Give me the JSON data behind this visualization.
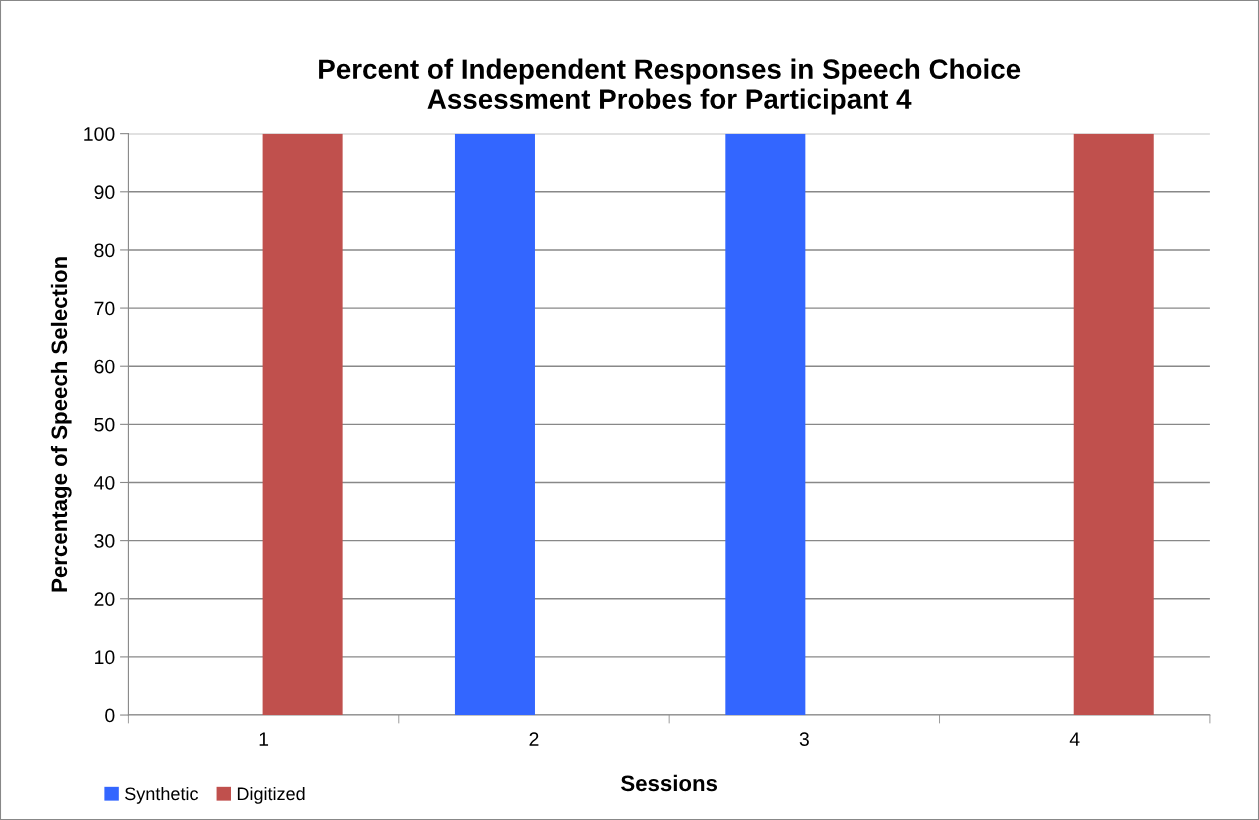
{
  "chart_data": {
    "type": "bar",
    "title": "Percent of Independent Responses in Speech Choice\nAssessment Probes for Participant 4",
    "xlabel": "Sessions",
    "ylabel": "Percentage of Speech Selection",
    "categories": [
      "1",
      "2",
      "3",
      "4"
    ],
    "series": [
      {
        "name": "Synthetic",
        "color": "#3366ff",
        "values": [
          0,
          100,
          100,
          0
        ]
      },
      {
        "name": "Digitized",
        "color": "#c0504d",
        "values": [
          100,
          0,
          0,
          100
        ]
      }
    ],
    "ylim": [
      0,
      100
    ],
    "yticks": [
      0,
      10,
      20,
      30,
      40,
      50,
      60,
      70,
      80,
      90,
      100
    ],
    "grid": "y",
    "legend": "bottom left"
  }
}
